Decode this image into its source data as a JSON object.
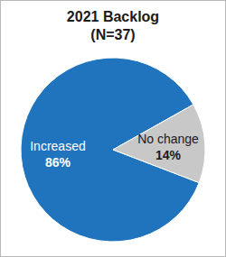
{
  "chart_data": {
    "type": "pie",
    "title": "2021 Backlog",
    "subtitle": "(N=37)",
    "categories": [
      "Increased",
      "No change"
    ],
    "values": [
      86,
      14
    ],
    "value_labels": [
      "86%",
      "14%"
    ],
    "colors": [
      "#1f74bd",
      "#c8c8c8"
    ],
    "data_labels": true
  }
}
